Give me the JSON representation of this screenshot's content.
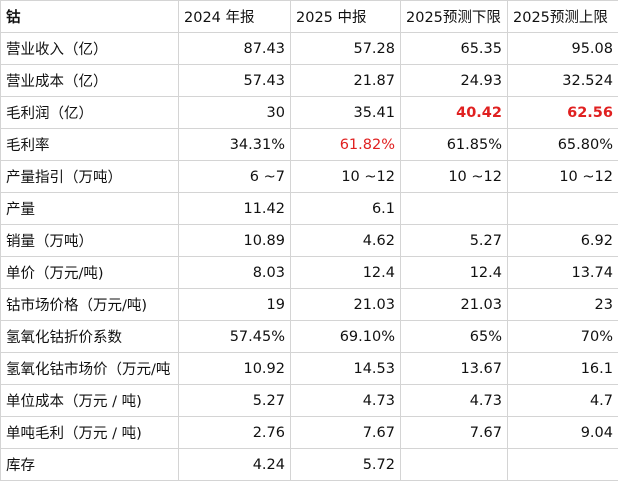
{
  "table": {
    "header": [
      "钴",
      "2024 年报",
      "2025 中报",
      "2025预测下限",
      "2025预测上限"
    ],
    "rows": [
      [
        "营业收入（亿）",
        "87.43",
        "57.28",
        "65.35",
        "95.08"
      ],
      [
        "营业成本（亿）",
        "57.43",
        "21.87",
        "24.93",
        "32.524"
      ],
      [
        "毛利润（亿）",
        "30",
        "35.41",
        "40.42",
        "62.56"
      ],
      [
        "毛利率",
        "34.31%",
        "61.82%",
        "61.85%",
        "65.80%"
      ],
      [
        "产量指引（万吨）",
        "6 ~7",
        "10 ~12",
        "10 ~12",
        "10 ~12"
      ],
      [
        "产量",
        "11.42",
        "6.1"
      ],
      [
        "销量（万吨）",
        "10.89",
        "4.62",
        "5.27",
        "6.92"
      ],
      [
        "单价（万元/吨)",
        "8.03",
        "12.4",
        "12.4",
        "13.74"
      ],
      [
        "钴市场价格（万元/吨)",
        "19",
        "21.03",
        "21.03",
        "23"
      ],
      [
        "氢氧化钴折价系数",
        "57.45%",
        "69.10%",
        "65%",
        "70%"
      ],
      [
        "氢氧化钴市场价（万元/吨",
        "10.92",
        "14.53",
        "13.67",
        "16.1"
      ],
      [
        "单位成本（万元 / 吨)",
        "5.27",
        "4.73",
        "4.73",
        "4.7"
      ],
      [
        "单吨毛利（万元 / 吨)",
        "2.76",
        "7.67",
        "7.67",
        "9.04"
      ],
      [
        "库存",
        "4.24",
        "5.72"
      ]
    ]
  }
}
